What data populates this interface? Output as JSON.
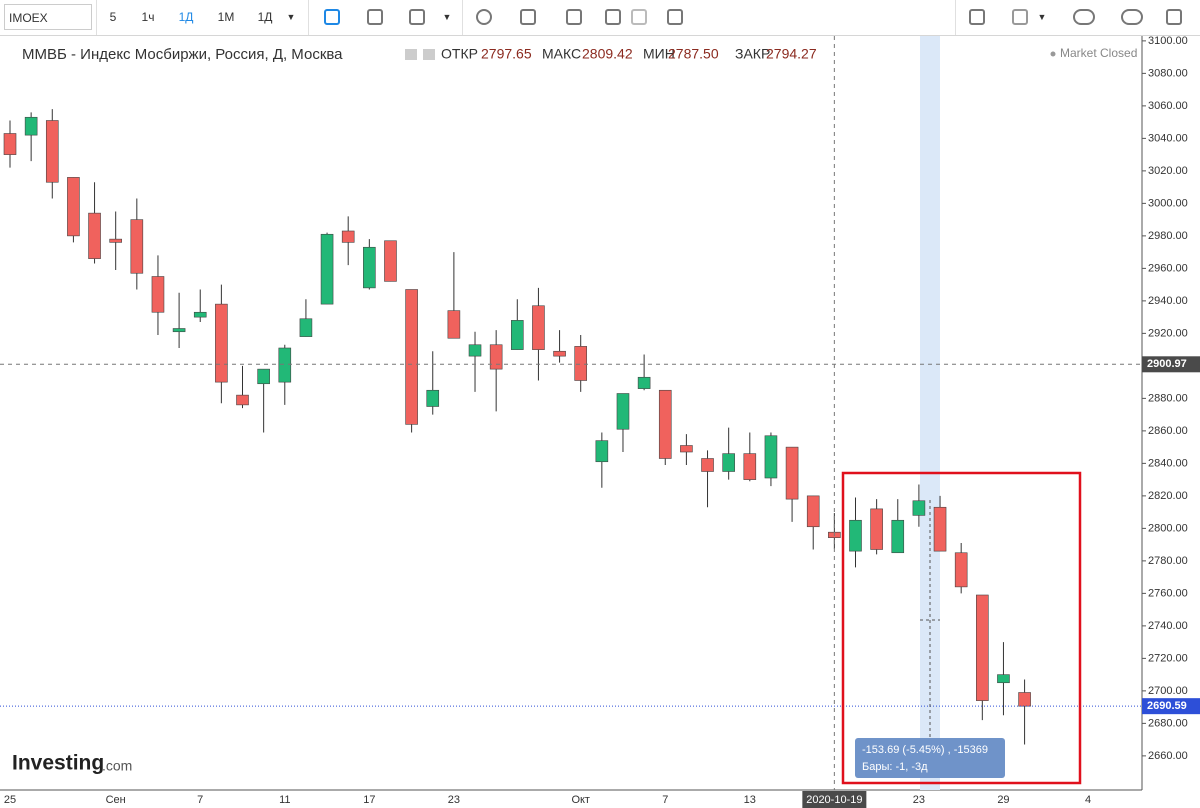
{
  "toolbar": {
    "symbol": "IMOEX",
    "intervals": [
      "5",
      "1ч",
      "1Д",
      "1М",
      "1Д"
    ]
  },
  "header": {
    "title": "ММВБ - Индекс Мосбиржи, Россия, Д, Москва",
    "open_label": "ОТКР",
    "open": "2797.65",
    "high_label": "МАКС",
    "high": "2809.42",
    "low_label": "МИН",
    "low": "2787.50",
    "close_label": "ЗАКР",
    "close": "2794.27",
    "status": "Market Closed"
  },
  "logo": {
    "name": "Investing",
    "suffix": ".com"
  },
  "measure": {
    "change": "-153.69 (-5.45%) , -15369",
    "bars": "Бары: -1, -3д"
  },
  "chart_data": {
    "type": "candlestick",
    "categories": [
      "25",
      null,
      null,
      null,
      null,
      "Сен",
      null,
      null,
      null,
      "7",
      null,
      null,
      null,
      "11",
      null,
      null,
      null,
      "17",
      null,
      null,
      null,
      "23",
      null,
      null,
      null,
      null,
      null,
      "Окт",
      null,
      null,
      null,
      "7",
      null,
      null,
      null,
      "13",
      null,
      null,
      null,
      "2020-10-19",
      null,
      null,
      null,
      "23",
      null,
      null,
      null,
      "29",
      null,
      null,
      null,
      "4"
    ],
    "open": [
      3043,
      3042,
      3051,
      3016,
      2994,
      2978,
      2990,
      2955,
      2921,
      2930,
      2938,
      2882,
      2889,
      2890,
      2918,
      2938,
      2983,
      2948,
      2977,
      2947,
      2875,
      2934,
      2906,
      2913,
      2910,
      2937,
      2909,
      2912,
      2841,
      2861,
      2886,
      2885,
      2851,
      2843,
      2835,
      2846,
      2831,
      2850,
      2820,
      2797.65,
      2786,
      2812,
      2785,
      2808,
      2813,
      2785,
      2759,
      2705,
      2699,
      null,
      null,
      null
    ],
    "high": [
      3051,
      3056,
      3058,
      3016,
      3013,
      2995,
      3003,
      2968,
      2945,
      2947,
      2950,
      2900,
      2898,
      2913,
      2941,
      2982,
      2992,
      2978,
      2977,
      2947,
      2909,
      2970,
      2921,
      2922,
      2941,
      2948,
      2922,
      2919,
      2859,
      2883,
      2907,
      2885,
      2858,
      2848,
      2862,
      2859,
      2859,
      2850,
      2820,
      2809.42,
      2819,
      2818,
      2818,
      2827,
      2820,
      2791,
      2759,
      2730,
      2707,
      null,
      null,
      null
    ],
    "low": [
      3022,
      3026,
      3003,
      2976,
      2963,
      2959,
      2947,
      2919,
      2911,
      2927,
      2877,
      2874,
      2859,
      2876,
      2918,
      2938,
      2962,
      2947,
      2952,
      2859,
      2870,
      2917,
      2884,
      2872,
      2910,
      2891,
      2902,
      2884,
      2825,
      2847,
      2885,
      2839,
      2839,
      2813,
      2830,
      2829,
      2826,
      2804,
      2787,
      2787.5,
      2776,
      2784,
      2785,
      2801,
      2786,
      2760,
      2682,
      2685,
      2667,
      null,
      null,
      null
    ],
    "close": [
      3030,
      3053,
      3013,
      2980,
      2966,
      2976,
      2957,
      2933,
      2923,
      2933,
      2890,
      2876,
      2898,
      2911,
      2929,
      2981,
      2976,
      2973,
      2952,
      2864,
      2885,
      2917,
      2913,
      2898,
      2928,
      2910,
      2906,
      2891,
      2854,
      2883,
      2893,
      2843,
      2847,
      2835,
      2846,
      2830,
      2857,
      2818,
      2801,
      2794.27,
      2805,
      2787,
      2805,
      2817,
      2786,
      2764,
      2694,
      2710,
      2690.59,
      null,
      null,
      null
    ],
    "up_color": "#22b877",
    "down_color": "#f0625d",
    "crosshair_category": "2020-10-19",
    "crosshair_price": 2900.97,
    "last_price": 2690.59,
    "ylim": [
      2639,
      3103
    ],
    "yticks": [
      {
        "value": 2660,
        "label": "2660.00"
      },
      {
        "value": 2680,
        "label": "2680.00"
      },
      {
        "value": 2700,
        "label": "2700.00"
      },
      {
        "value": 2720,
        "label": "2720.00"
      },
      {
        "value": 2740,
        "label": "2740.00"
      },
      {
        "value": 2760,
        "label": "2760.00"
      },
      {
        "value": 2780,
        "label": "2780.00"
      },
      {
        "value": 2800,
        "label": "2800.00"
      },
      {
        "value": 2820,
        "label": "2820.00"
      },
      {
        "value": 2840,
        "label": "2840.00"
      },
      {
        "value": 2860,
        "label": "2860.00"
      },
      {
        "value": 2880,
        "label": "2880.00"
      },
      {
        "value": 2900,
        "label": "2900.00"
      },
      {
        "value": 2920,
        "label": "2920.00"
      },
      {
        "value": 2940,
        "label": "2940.00"
      },
      {
        "value": 2960,
        "label": "2960.00"
      },
      {
        "value": 2980,
        "label": "2980.00"
      },
      {
        "value": 3000,
        "label": "3000.00"
      },
      {
        "value": 3020,
        "label": "3020.00"
      },
      {
        "value": 3040,
        "label": "3040.00"
      },
      {
        "value": 3060,
        "label": "3060.00"
      },
      {
        "value": 3080,
        "label": "3080.00"
      },
      {
        "value": 3100,
        "label": "3100.00"
      }
    ]
  }
}
